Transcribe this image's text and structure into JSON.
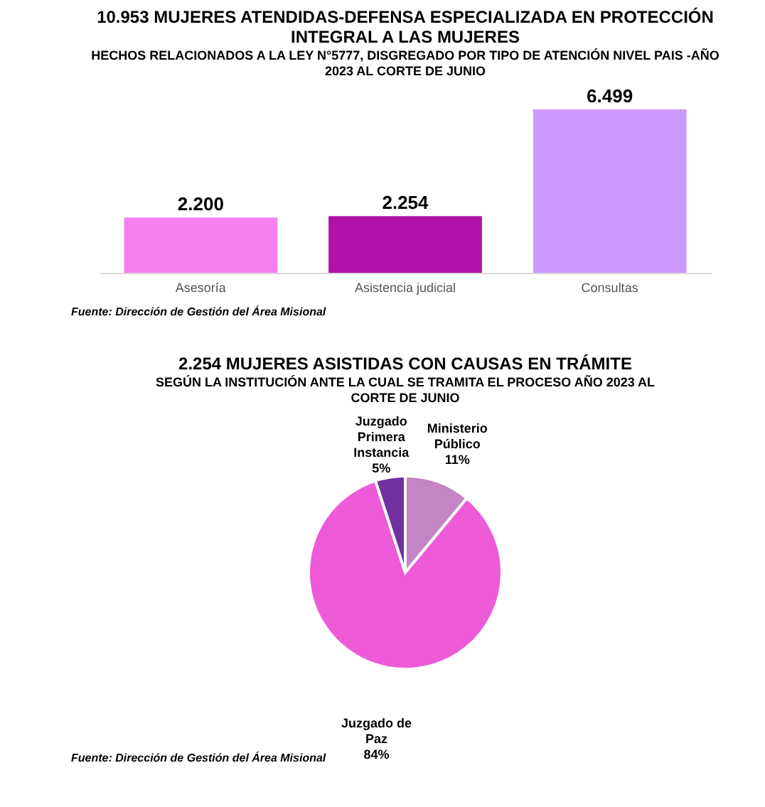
{
  "chart_data": [
    {
      "type": "bar",
      "title": "10.953 MUJERES ATENDIDAS-DEFENSA ESPECIALIZADA EN PROTECCIÓN INTEGRAL A LAS MUJERES",
      "subtitle": "HECHOS RELACIONADOS A LA LEY N°5777, DISGREGADO POR TIPO DE ATENCIÓN NIVEL PAIS -AÑO 2023 AL CORTE DE JUNIO",
      "categories": [
        "Asesoría",
        "Asistencia judicial",
        "Consultas"
      ],
      "values": [
        2200,
        2254,
        6499
      ],
      "value_labels": [
        "2.200",
        "2.254",
        "6.499"
      ],
      "colors": [
        "#f77ff0",
        "#b012a8",
        "#cc99ff"
      ],
      "tick_labels": "x",
      "annotations": [
        "Fuente: Dirección de Gestión del Área Misional"
      ]
    },
    {
      "type": "pie",
      "title": "2.254 MUJERES ASISTIDAS CON CAUSAS EN TRÁMITE",
      "subtitle": "SEGÚN LA INSTITUCIÓN ANTE LA CUAL SE TRAMITA EL PROCESO AÑO 2023 AL CORTE DE JUNIO",
      "categories": [
        "Ministerio Público",
        "Juzgado de Paz",
        "Juzgado Primera Instancia"
      ],
      "values": [
        11,
        84,
        5
      ],
      "value_labels": [
        "11%",
        "84%",
        "5%"
      ],
      "colors": [
        "#c485c4",
        "#ee5ad8",
        "#7030a0"
      ],
      "annotations": [
        "Fuente: Dirección de Gestión del Área Misional"
      ]
    }
  ]
}
